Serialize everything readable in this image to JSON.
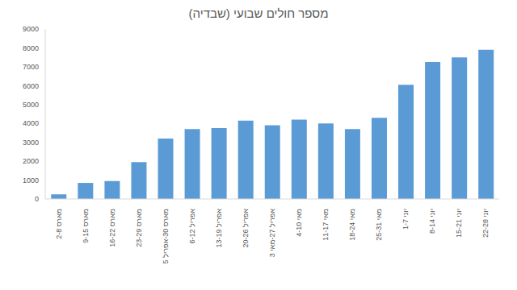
{
  "chart_data": {
    "type": "bar",
    "title": "מספר חולים שבועי (שבדיה)",
    "categories": [
      "מארס 2-8",
      "מארס 9-15",
      "מארס 16-22",
      "מארס 23-29",
      "מארס 30-אפריל 5",
      "אפריל 6-12",
      "אפריל 13-19",
      "אפריל 20-26",
      "אפריל 27-מאי 3",
      "מאי 4-10",
      "מאי 11-17",
      "מאי 18-24",
      "מאי 25-31",
      "יוני 1-7",
      "יוני 8-14",
      "יוני 15-21",
      "יוני 22-28"
    ],
    "values": [
      250,
      850,
      950,
      1950,
      3200,
      3700,
      3750,
      4150,
      3900,
      4200,
      4000,
      3700,
      4300,
      6050,
      7250,
      7500,
      7900
    ],
    "color": "#5b9bd5",
    "ylim": [
      0,
      9000
    ],
    "yticks": [
      0,
      1000,
      2000,
      3000,
      4000,
      5000,
      6000,
      7000,
      8000,
      9000
    ],
    "grid": false
  }
}
